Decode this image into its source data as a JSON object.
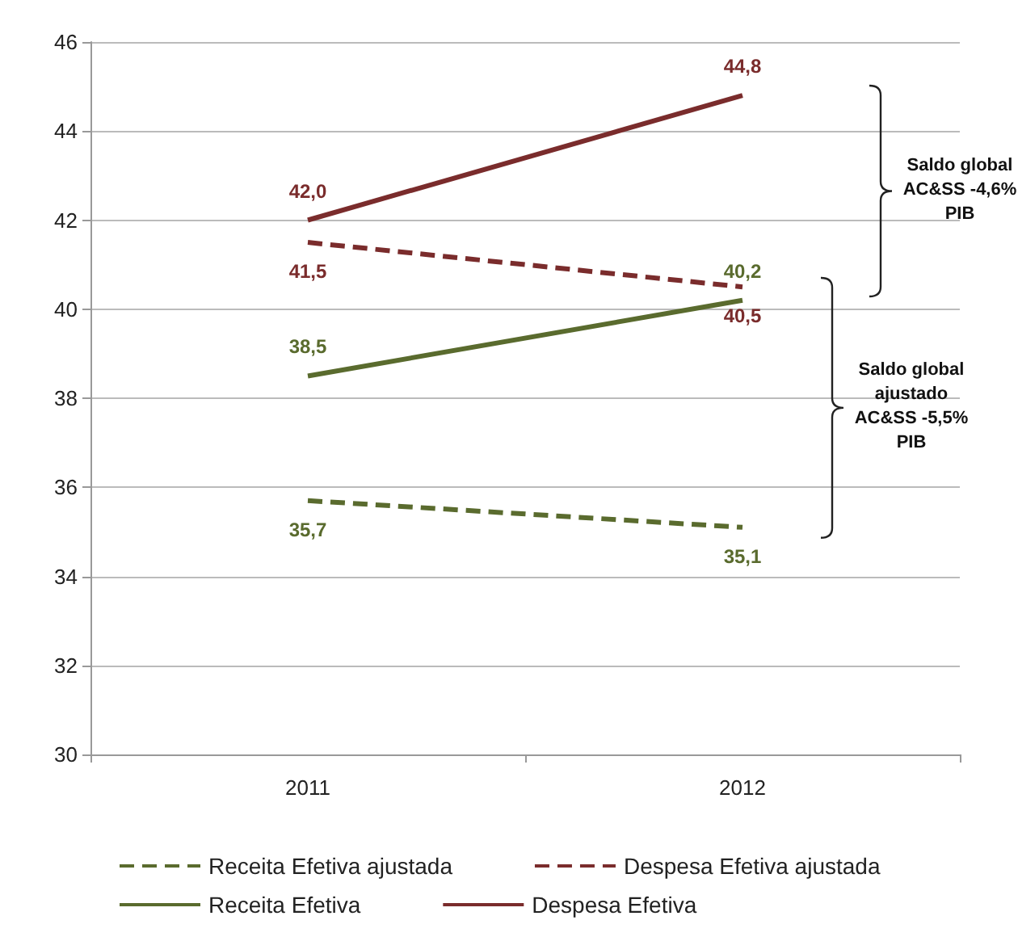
{
  "chart_data": {
    "type": "line",
    "categories": [
      "2011",
      "2012"
    ],
    "series": [
      {
        "name": "Receita Efetiva ajustada",
        "color": "#5a6b2e",
        "line_style": "dashed",
        "values": [
          35.7,
          35.1
        ],
        "value_labels": [
          "35,7",
          "35,1"
        ]
      },
      {
        "name": "Despesa Efetiva ajustada",
        "color": "#7a2c2c",
        "line_style": "dashed",
        "values": [
          41.5,
          40.5
        ],
        "value_labels": [
          "41,5",
          "40,5"
        ]
      },
      {
        "name": "Receita Efetiva",
        "color": "#5a6b2e",
        "line_style": "solid",
        "values": [
          38.5,
          40.2
        ],
        "value_labels": [
          "38,5",
          "40,2"
        ]
      },
      {
        "name": "Despesa Efetiva",
        "color": "#7a2c2c",
        "line_style": "solid",
        "values": [
          42.0,
          44.8
        ],
        "value_labels": [
          "42,0",
          "44,8"
        ]
      }
    ],
    "ylim": [
      30,
      46
    ],
    "yticks": [
      30,
      32,
      34,
      36,
      38,
      40,
      42,
      44,
      46
    ],
    "grid": "y",
    "legend": "bottom",
    "marker": "none",
    "annotations": [
      "Saldo global AC&SS -4,6% PIB",
      "Saldo global ajustado AC&SS -5,5% PIB"
    ]
  }
}
